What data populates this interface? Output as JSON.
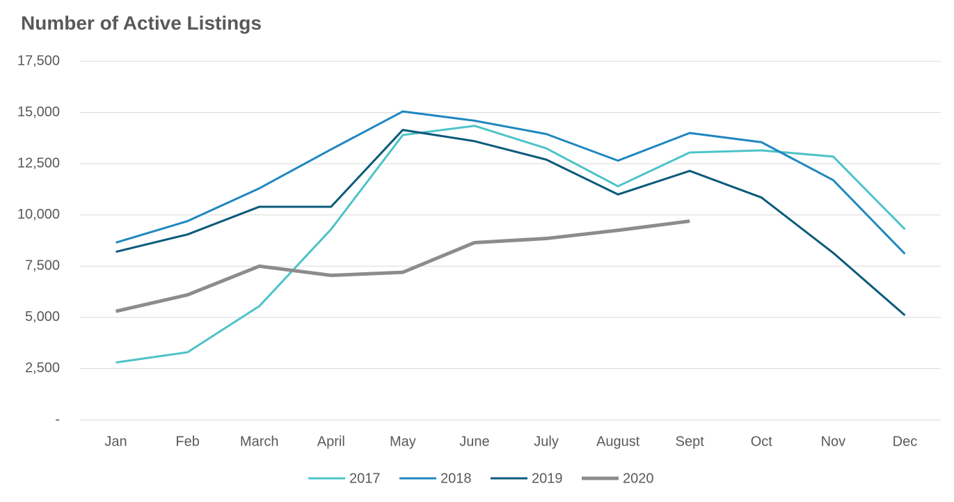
{
  "chart_data": {
    "type": "line",
    "title": "Number of Active Listings",
    "categories": [
      "Jan",
      "Feb",
      "March",
      "April",
      "May",
      "June",
      "July",
      "August",
      "Sept",
      "Oct",
      "Nov",
      "Dec"
    ],
    "series": [
      {
        "name": "2017",
        "color": "#4dc3c8",
        "values": [
          2800,
          3300,
          5550,
          9300,
          13900,
          14350,
          13250,
          11400,
          13050,
          13150,
          12850,
          9300
        ]
      },
      {
        "name": "2018",
        "color": "#1f87c0",
        "values": [
          8650,
          9700,
          11300,
          13200,
          15050,
          14600,
          13950,
          12650,
          14000,
          13550,
          11700,
          8100
        ]
      },
      {
        "name": "2019",
        "color": "#0b5a7a",
        "values": [
          8200,
          9050,
          10400,
          10400,
          14150,
          13600,
          12700,
          11000,
          12150,
          10850,
          8150,
          5100
        ]
      },
      {
        "name": "2020",
        "color": "#8c8c8c",
        "values": [
          5300,
          6100,
          7500,
          7050,
          7200,
          8650,
          8850,
          9250,
          9700,
          null,
          null,
          null
        ]
      }
    ],
    "ylim": [
      0,
      17500
    ],
    "yticks": [
      {
        "value": 0,
        "label": "-"
      },
      {
        "value": 2500,
        "label": "2,500"
      },
      {
        "value": 5000,
        "label": "5,000"
      },
      {
        "value": 7500,
        "label": "7,500"
      },
      {
        "value": 10000,
        "label": "10,000"
      },
      {
        "value": 12500,
        "label": "12,500"
      },
      {
        "value": 15000,
        "label": "15,000"
      },
      {
        "value": 17500,
        "label": "17,500"
      }
    ],
    "grid": true,
    "legend": "bottom"
  }
}
